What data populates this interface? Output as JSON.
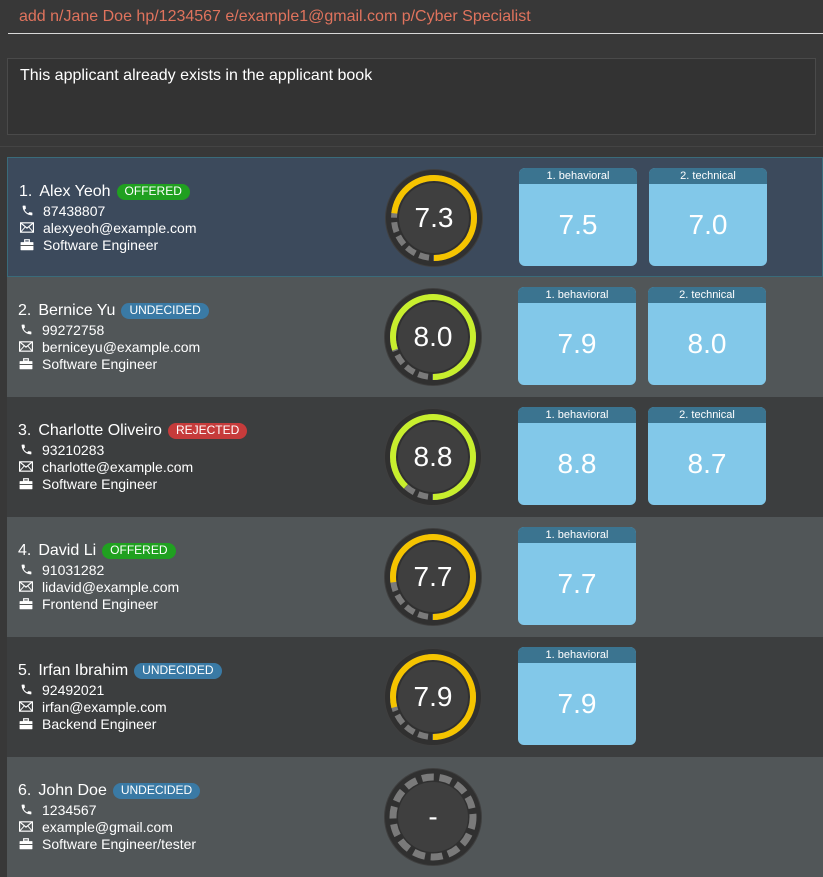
{
  "command": {
    "value": "add n/Jane Doe hp/1234567 e/example1@gmail.com p/Cyber Specialist"
  },
  "result": {
    "text": "This applicant already exists in the applicant book"
  },
  "colors": {
    "offered": "#20a020",
    "undecided": "#3a7aa5",
    "rejected": "#c63b3b",
    "ring_yellow": "#f5c400",
    "ring_green": "#c8ef2e",
    "ring_track": "#7a7a7a",
    "interview_bg": "#82c8e9",
    "interview_head": "#3b7490"
  },
  "icons": {
    "phone": "phone-icon",
    "email": "email-icon",
    "position": "briefcase-icon"
  },
  "applicants": [
    {
      "index": "1.",
      "name": "Alex Yeoh",
      "status": "OFFERED",
      "status_class": "offered",
      "phone": "87438807",
      "email": "alexyeoh@example.com",
      "position": "Software Engineer",
      "score": "7.3",
      "score_fraction": 0.73,
      "ring_color": "#f5c400",
      "interviews": [
        {
          "label": "1. behavioral",
          "score": "7.5"
        },
        {
          "label": "2. technical",
          "score": "7.0"
        }
      ]
    },
    {
      "index": "2.",
      "name": "Bernice Yu",
      "status": "UNDECIDED",
      "status_class": "undecided",
      "phone": "99272758",
      "email": "berniceyu@example.com",
      "position": "Software Engineer",
      "score": "8.0",
      "score_fraction": 0.8,
      "ring_color": "#c8ef2e",
      "interviews": [
        {
          "label": "1. behavioral",
          "score": "7.9"
        },
        {
          "label": "2. technical",
          "score": "8.0"
        }
      ]
    },
    {
      "index": "3.",
      "name": "Charlotte Oliveiro",
      "status": "REJECTED",
      "status_class": "rejected",
      "phone": "93210283",
      "email": "charlotte@example.com",
      "position": "Software Engineer",
      "score": "8.8",
      "score_fraction": 0.88,
      "ring_color": "#c8ef2e",
      "interviews": [
        {
          "label": "1. behavioral",
          "score": "8.8"
        },
        {
          "label": "2. technical",
          "score": "8.7"
        }
      ]
    },
    {
      "index": "4.",
      "name": "David Li",
      "status": "OFFERED",
      "status_class": "offered",
      "phone": "91031282",
      "email": "lidavid@example.com",
      "position": "Frontend Engineer",
      "score": "7.7",
      "score_fraction": 0.77,
      "ring_color": "#f5c400",
      "interviews": [
        {
          "label": "1. behavioral",
          "score": "7.7"
        }
      ]
    },
    {
      "index": "5.",
      "name": "Irfan Ibrahim",
      "status": "UNDECIDED",
      "status_class": "undecided",
      "phone": "92492021",
      "email": "irfan@example.com",
      "position": "Backend Engineer",
      "score": "7.9",
      "score_fraction": 0.79,
      "ring_color": "#f5c400",
      "interviews": [
        {
          "label": "1. behavioral",
          "score": "7.9"
        }
      ]
    },
    {
      "index": "6.",
      "name": "John Doe",
      "status": "UNDECIDED",
      "status_class": "undecided",
      "phone": "1234567",
      "email": "example@gmail.com",
      "position": "Software Engineer/tester",
      "score": "-",
      "score_fraction": 0,
      "ring_color": "#7a7a7a",
      "interviews": []
    }
  ]
}
